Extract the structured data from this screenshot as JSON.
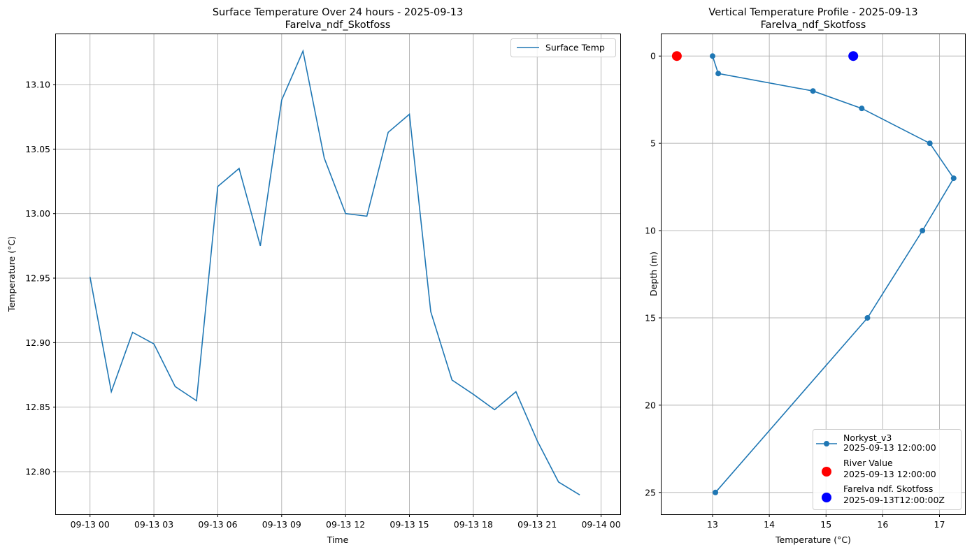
{
  "chart_data": [
    {
      "type": "line",
      "title_line1": "Surface Temperature Over 24 hours - 2025-09-13",
      "title_line2": "Farelva_ndf_Skotfoss",
      "xlabel": "Time",
      "ylabel": "Temperature (°C)",
      "xlim": [
        -1.6,
        24.9
      ],
      "ylim": [
        12.767,
        13.139
      ],
      "x_ticks": [
        {
          "value": 0,
          "label": "09-13 00"
        },
        {
          "value": 3,
          "label": "09-13 03"
        },
        {
          "value": 6,
          "label": "09-13 06"
        },
        {
          "value": 9,
          "label": "09-13 09"
        },
        {
          "value": 12,
          "label": "09-13 12"
        },
        {
          "value": 15,
          "label": "09-13 15"
        },
        {
          "value": 18,
          "label": "09-13 18"
        },
        {
          "value": 21,
          "label": "09-13 21"
        },
        {
          "value": 24,
          "label": "09-14 00"
        }
      ],
      "y_ticks": [
        {
          "value": 12.8,
          "label": "12.80"
        },
        {
          "value": 12.85,
          "label": "12.85"
        },
        {
          "value": 12.9,
          "label": "12.90"
        },
        {
          "value": 12.95,
          "label": "12.95"
        },
        {
          "value": 13.0,
          "label": "13.00"
        },
        {
          "value": 13.05,
          "label": "13.05"
        },
        {
          "value": 13.1,
          "label": "13.10"
        }
      ],
      "grid": true,
      "legend_position": "upper right",
      "series": [
        {
          "name": "Surface Temp",
          "color": "#1f77b4",
          "x": [
            0,
            1,
            2,
            3,
            4,
            5,
            6,
            7,
            8,
            9,
            10,
            11,
            12,
            13,
            14,
            15,
            16,
            17,
            18,
            19,
            20,
            21,
            22,
            23
          ],
          "values": [
            12.951,
            12.862,
            12.908,
            12.899,
            12.866,
            12.855,
            13.021,
            13.035,
            12.975,
            13.088,
            13.126,
            13.043,
            13.0,
            12.998,
            13.063,
            13.077,
            12.924,
            12.871,
            12.86,
            12.848,
            12.862,
            12.824,
            12.792,
            12.782
          ]
        }
      ]
    },
    {
      "type": "line",
      "title_line1": "Vertical Temperature Profile - 2025-09-13",
      "title_line2": "Farelva_ndf_Skotfoss",
      "xlabel": "Temperature (°C)",
      "ylabel": "Depth (m)",
      "xlim": [
        12.1,
        17.45
      ],
      "ylim": [
        26.25,
        -1.25
      ],
      "y_inverted": true,
      "x_ticks": [
        {
          "value": 13,
          "label": "13"
        },
        {
          "value": 14,
          "label": "14"
        },
        {
          "value": 15,
          "label": "15"
        },
        {
          "value": 16,
          "label": "16"
        },
        {
          "value": 17,
          "label": "17"
        }
      ],
      "y_ticks": [
        {
          "value": 0,
          "label": "0"
        },
        {
          "value": 5,
          "label": "5"
        },
        {
          "value": 10,
          "label": "10"
        },
        {
          "value": 15,
          "label": "15"
        },
        {
          "value": 20,
          "label": "20"
        },
        {
          "value": 25,
          "label": "25"
        }
      ],
      "grid": true,
      "legend_position": "lower right",
      "series": [
        {
          "name": "Norkyst_v3",
          "timestamp": "2025-09-13 12:00:00",
          "color": "#1f77b4",
          "marker": "circle-line",
          "x": [
            13.0,
            13.1,
            14.77,
            15.63,
            16.83,
            17.25,
            16.7,
            15.73,
            13.05
          ],
          "y": [
            0,
            1,
            2,
            3,
            5,
            7,
            10,
            15,
            25
          ]
        },
        {
          "name": "River Value",
          "timestamp": "2025-09-13 12:00:00",
          "color": "#ff0000",
          "marker": "big-circle",
          "x": [
            12.37
          ],
          "y": [
            0
          ]
        },
        {
          "name": "Farelva ndf. Skotfoss",
          "timestamp": "2025-09-13T12:00:00Z",
          "color": "#0000ff",
          "marker": "big-circle",
          "x": [
            15.48
          ],
          "y": [
            0
          ]
        }
      ]
    }
  ]
}
